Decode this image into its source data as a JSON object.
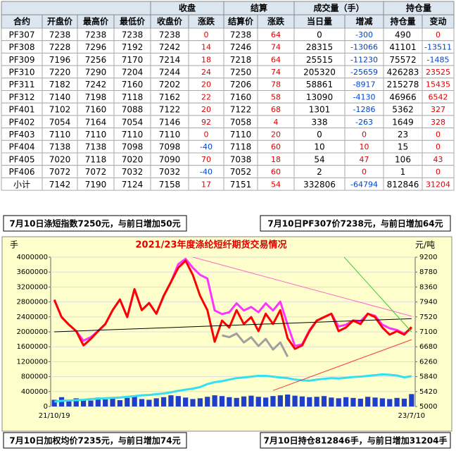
{
  "table": {
    "group_headers": [
      "收盘",
      "结算",
      "成交量（手）",
      "持仓量"
    ],
    "columns": [
      "合约",
      "开盘价",
      "最高价",
      "最低价",
      "收盘价",
      "涨跌",
      "结算价",
      "涨跌",
      "当日量",
      "增减",
      "持仓量",
      "变动"
    ],
    "rows": [
      [
        "PF307",
        7238,
        7238,
        7238,
        7238,
        0,
        7238,
        64,
        0,
        -300,
        490,
        0
      ],
      [
        "PF308",
        7228,
        7296,
        7192,
        7242,
        14,
        7246,
        74,
        28315,
        -13066,
        41101,
        -13511
      ],
      [
        "PF309",
        7196,
        7256,
        7170,
        7214,
        18,
        7218,
        64,
        25515,
        -11230,
        75572,
        -1485
      ],
      [
        "PF310",
        7220,
        7290,
        7204,
        7244,
        24,
        7250,
        74,
        205320,
        -25659,
        426283,
        23525
      ],
      [
        "PF311",
        7182,
        7242,
        7160,
        7202,
        20,
        7206,
        78,
        58861,
        -8917,
        215278,
        15435
      ],
      [
        "PF312",
        7140,
        7198,
        7118,
        7162,
        22,
        7160,
        58,
        13090,
        -4130,
        46966,
        6542
      ],
      [
        "PF401",
        7102,
        7160,
        7088,
        7122,
        20,
        7122,
        68,
        1301,
        -1286,
        5362,
        327
      ],
      [
        "PF402",
        7054,
        7164,
        7054,
        7146,
        92,
        7058,
        4,
        338,
        -263,
        1649,
        328
      ],
      [
        "PF403",
        7110,
        7110,
        7110,
        7110,
        0,
        7110,
        20,
        0,
        0,
        23,
        0
      ],
      [
        "PF404",
        7138,
        7138,
        7098,
        7098,
        -40,
        7118,
        60,
        10,
        10,
        15,
        0
      ],
      [
        "PF405",
        7020,
        7118,
        7020,
        7090,
        70,
        7038,
        18,
        54,
        47,
        106,
        43
      ],
      [
        "PF406",
        7072,
        7072,
        7032,
        7032,
        -40,
        7052,
        60,
        2,
        0,
        1,
        0
      ],
      [
        "小计",
        7142,
        7190,
        7124,
        7158,
        17,
        7151,
        54,
        332806,
        -64794,
        812846,
        31204
      ]
    ]
  },
  "notes": {
    "top_left": "7月10日涤短指数7250元，与前日增加50元",
    "top_right": "7月10日PF307价7238元，与前日增加64元",
    "bottom_left": "7月10日加权均价7235元，与前日增加74元",
    "bottom_right": "7月10日持仓812846手，与前日增加31204手"
  },
  "chart_data": {
    "type": "line",
    "title": "2021/23年度涤纶短纤期货交易情况",
    "y_label": "手",
    "y2_label": "元/吨",
    "categories": [
      "21/10/19",
      null,
      null,
      null,
      null,
      null,
      null,
      null,
      null,
      null,
      null,
      null,
      null,
      null,
      null,
      null,
      null,
      null,
      null,
      null,
      null,
      null,
      null,
      null,
      null,
      null,
      null,
      null,
      null,
      null,
      null,
      null,
      null,
      null,
      null,
      null,
      null,
      null,
      null,
      null,
      null,
      null,
      null,
      null,
      null,
      null,
      null,
      null,
      null,
      "23/7/10"
    ],
    "ylim": [
      0,
      4000000
    ],
    "yticks": [
      0,
      400000,
      800000,
      1200000,
      1600000,
      2000000,
      2400000,
      2800000,
      3200000,
      3600000,
      4000000
    ],
    "y2lim": [
      5000,
      9200
    ],
    "y2ticks": [
      5000,
      5420,
      5840,
      6260,
      6680,
      7100,
      7520,
      7940,
      8360,
      8780,
      9200
    ],
    "grid": true,
    "series": [
      {
        "type": "bar",
        "axis": "y",
        "color": "#1f3fc8",
        "values": [
          180000,
          250000,
          150000,
          220000,
          200000,
          160000,
          240000,
          190000,
          210000,
          170000,
          230000,
          260000,
          200000,
          180000,
          220000,
          250000,
          300000,
          280000,
          240000,
          200000,
          220000,
          260000,
          300000,
          280000,
          250000,
          230000,
          270000,
          290000,
          260000,
          240000,
          280000,
          300000,
          320000,
          290000,
          270000,
          250000,
          260000,
          280000,
          240000,
          220000,
          250000,
          230000,
          210000,
          260000,
          240000,
          220000,
          200000,
          230000,
          210000,
          332806
        ]
      },
      {
        "type": "line",
        "axis": "y",
        "color": "#33e0f0",
        "values": [
          130000,
          150000,
          160000,
          170000,
          180000,
          200000,
          210000,
          220000,
          230000,
          240000,
          260000,
          280000,
          300000,
          310000,
          330000,
          350000,
          380000,
          420000,
          450000,
          480000,
          520000,
          600000,
          650000,
          680000,
          720000,
          760000,
          780000,
          800000,
          820000,
          820000,
          800000,
          780000,
          760000,
          720000,
          700000,
          690000,
          720000,
          740000,
          760000,
          750000,
          770000,
          790000,
          800000,
          820000,
          840000,
          860000,
          850000,
          830000,
          781642,
          812846
        ]
      },
      {
        "type": "line",
        "axis": "y2",
        "color": "#a0a0a0",
        "values": [
          null,
          null,
          null,
          null,
          null,
          null,
          null,
          null,
          null,
          null,
          null,
          null,
          null,
          null,
          null,
          null,
          null,
          null,
          null,
          null,
          null,
          null,
          null,
          7000,
          6950,
          7050,
          6800,
          6950,
          6700,
          6900,
          6600,
          6800,
          6400,
          null,
          null,
          null,
          null,
          null,
          null,
          null,
          null,
          null,
          null,
          null,
          null,
          null,
          null,
          null,
          null,
          null
        ]
      },
      {
        "type": "line",
        "axis": "y2",
        "color": "#ff33ff",
        "values": [
          8000,
          7515,
          7300,
          7120,
          6850,
          6950,
          7120,
          7320,
          7710,
          8010,
          7515,
          8300,
          7710,
          7910,
          7610,
          8110,
          8500,
          9000,
          9150,
          8900,
          8700,
          8600,
          7700,
          7600,
          7650,
          7900,
          7700,
          7800,
          7650,
          7900,
          7700,
          7950,
          7300,
          6700,
          6750,
          7150,
          7415,
          7515,
          7610,
          7250,
          7300,
          7420,
          7400,
          7610,
          7550,
          7300,
          7200,
          7150,
          7050,
          7200
        ]
      },
      {
        "type": "line",
        "axis": "y2",
        "color": "#ff0000",
        "values": [
          8000,
          7515,
          7300,
          7120,
          6720,
          6900,
          7120,
          7320,
          7710,
          8010,
          7515,
          8300,
          7710,
          7910,
          7610,
          8110,
          8500,
          8900,
          9100,
          8700,
          8110,
          7710,
          6820,
          7415,
          7220,
          7710,
          7320,
          7515,
          7120,
          7610,
          7320,
          7710,
          6920,
          6620,
          6720,
          7120,
          7415,
          7515,
          7610,
          7120,
          7220,
          7415,
          7320,
          7610,
          7515,
          7220,
          7020,
          7120,
          7020,
          7235
        ]
      }
    ],
    "trend_lines": [
      {
        "color": "#000000",
        "x": [
          0,
          49
        ],
        "y": [
          7100,
          7470
        ]
      },
      {
        "color": "#ff66cc",
        "x": [
          19,
          49
        ],
        "y": [
          9200,
          7540
        ]
      },
      {
        "color": "#33cc33",
        "x": [
          38,
          49
        ],
        "y": [
          9600,
          7100
        ]
      },
      {
        "color": "#ff3333",
        "x": [
          30,
          49
        ],
        "y": [
          5450,
          6880
        ]
      }
    ]
  }
}
